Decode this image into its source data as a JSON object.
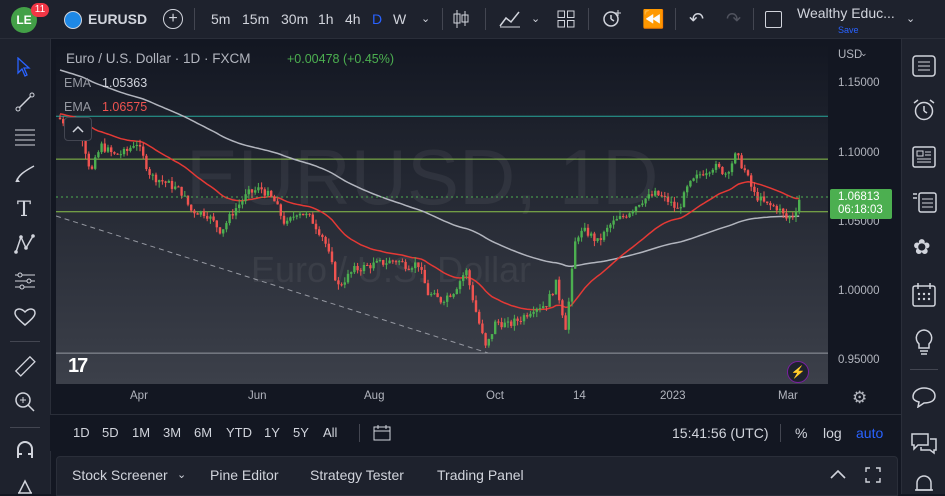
{
  "topbar": {
    "badge": "11",
    "symbol": "EURUSD",
    "intervals": [
      "5m",
      "15m",
      "30m",
      "1h",
      "4h",
      "D",
      "W"
    ],
    "active_interval": "D",
    "layout_name": "Wealthy Educ...",
    "layout_status": "Save"
  },
  "legend": {
    "title": "Euro / U.S. Dollar · 1D · FXCM",
    "change": "+0.00478 (+0.45%)",
    "ema_label": "EMA",
    "ema_value": "1.05363",
    "ema2_label": "EMA",
    "ema2_value": "1.06575"
  },
  "watermark": {
    "symbol": "EURUSD, 1D",
    "name": "Euro / U.S. Dollar"
  },
  "price_axis": {
    "currency": "USD",
    "ticks": [
      "1.15000",
      "1.10000",
      "1.05000",
      "1.00000",
      "0.95000"
    ],
    "last_price": "1.06813",
    "countdown": "06:18:03"
  },
  "time_axis": {
    "ticks": [
      "Apr",
      "Jun",
      "Aug",
      "Oct",
      "14",
      "2023",
      "Mar"
    ]
  },
  "range_bar": {
    "ranges": [
      "1D",
      "5D",
      "1M",
      "3M",
      "6M",
      "YTD",
      "1Y",
      "5Y",
      "All"
    ],
    "clock": "15:41:56 (UTC)",
    "percent": "%",
    "log": "log",
    "auto": "auto"
  },
  "bottom_bar": {
    "tabs": [
      "Stock Screener",
      "Pine Editor",
      "Strategy Tester",
      "Trading Panel"
    ]
  },
  "colors": {
    "up": "#26a69a",
    "green_candle": "#4caf50",
    "down": "#ef5350",
    "ema_short": "#e53935",
    "ema_long": "#b2b5be",
    "hline_green": "#8bc34a",
    "hline_teal": "#26a69a",
    "accent": "#2962ff",
    "last_price_bg": "#4caf50"
  },
  "chart_data": {
    "type": "candlestick",
    "ylim": [
      0.93,
      1.17
    ],
    "horizontal_levels": [
      1.126,
      1.095,
      1.057,
      0.955
    ],
    "last_price": 1.06813,
    "ema_values": [
      1.05363,
      1.06575
    ]
  }
}
